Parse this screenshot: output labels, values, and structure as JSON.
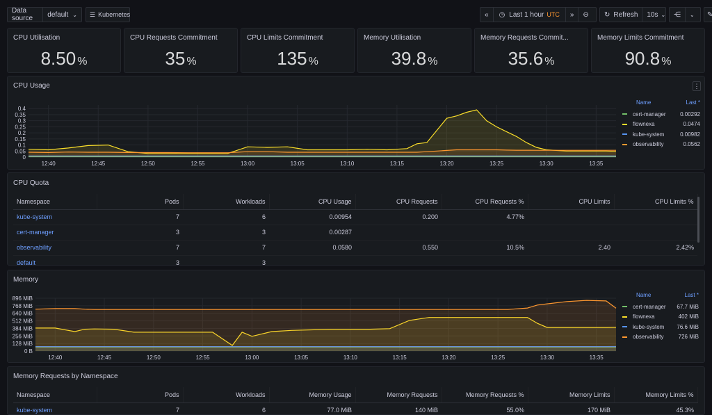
{
  "toolbar": {
    "datasource_label": "Data source",
    "datasource_value": "default",
    "kubernetes_label": "Kubernetes",
    "time_range": "Last 1 hour",
    "timezone": "UTC",
    "refresh_label": "Refresh",
    "refresh_interval": "10s"
  },
  "stats": [
    {
      "title": "CPU Utilisation",
      "value": "8.50",
      "unit": "%"
    },
    {
      "title": "CPU Requests Commitment",
      "value": "35",
      "unit": "%"
    },
    {
      "title": "CPU Limits Commitment",
      "value": "135",
      "unit": "%"
    },
    {
      "title": "Memory Utilisation",
      "value": "39.8",
      "unit": "%"
    },
    {
      "title": "Memory Requests Commit...",
      "value": "35.6",
      "unit": "%"
    },
    {
      "title": "Memory Limits Commitment",
      "value": "90.8",
      "unit": "%"
    }
  ],
  "cpu_usage": {
    "title": "CPU Usage",
    "legend": {
      "name_header": "Name",
      "last_header": "Last *",
      "rows": [
        {
          "name": "cert-manager",
          "value": "0.00292",
          "color": "#73bf69"
        },
        {
          "name": "flownexa",
          "value": "0.0474",
          "color": "#fade2a"
        },
        {
          "name": "kube-system",
          "value": "0.00982",
          "color": "#5794f2"
        },
        {
          "name": "observability",
          "value": "0.0562",
          "color": "#ff9830"
        }
      ]
    }
  },
  "cpu_quota": {
    "title": "CPU Quota",
    "columns": [
      "Namespace",
      "Pods",
      "Workloads",
      "CPU Usage",
      "CPU Requests",
      "CPU Requests %",
      "CPU Limits",
      "CPU Limits %"
    ],
    "rows": [
      [
        "kube-system",
        "7",
        "6",
        "0.00954",
        "0.200",
        "4.77%",
        "",
        ""
      ],
      [
        "cert-manager",
        "3",
        "3",
        "0.00287",
        "",
        "",
        "",
        ""
      ],
      [
        "observability",
        "7",
        "7",
        "0.0580",
        "0.550",
        "10.5%",
        "2.40",
        "2.42%"
      ],
      [
        "default",
        "3",
        "3",
        "",
        "",
        "",
        "",
        ""
      ]
    ]
  },
  "memory": {
    "title": "Memory",
    "legend": {
      "name_header": "Name",
      "last_header": "Last *",
      "rows": [
        {
          "name": "cert-manager",
          "value": "67.7 MiB",
          "color": "#73bf69"
        },
        {
          "name": "flownexa",
          "value": "402 MiB",
          "color": "#fade2a"
        },
        {
          "name": "kube-system",
          "value": "76.6 MiB",
          "color": "#5794f2"
        },
        {
          "name": "observability",
          "value": "726 MiB",
          "color": "#ff9830"
        }
      ]
    }
  },
  "mem_requests": {
    "title": "Memory Requests by Namespace",
    "columns": [
      "Namespace",
      "Pods",
      "Workloads",
      "Memory Usage",
      "Memory Requests",
      "Memory Requests %",
      "Memory Limits",
      "Memory Limits %"
    ],
    "rows": [
      [
        "kube-system",
        "7",
        "6",
        "77.0 MiB",
        "140 MiB",
        "55.0%",
        "170 MiB",
        "45.3%"
      ]
    ]
  },
  "chart_data": [
    {
      "type": "area",
      "title": "CPU Usage",
      "x": [
        "12:38",
        "12:40",
        "12:42",
        "12:44",
        "12:46",
        "12:48",
        "12:50",
        "12:52",
        "12:54",
        "12:56",
        "12:58",
        "13:00",
        "13:02",
        "13:04",
        "13:06",
        "13:08",
        "13:10",
        "13:12",
        "13:14",
        "13:16",
        "13:17",
        "13:18",
        "13:19",
        "13:20",
        "13:21",
        "13:22",
        "13:23",
        "13:24",
        "13:25",
        "13:26",
        "13:27",
        "13:28",
        "13:29",
        "13:30",
        "13:32",
        "13:34",
        "13:36",
        "13:37"
      ],
      "x_ticks": [
        "12:40",
        "12:45",
        "12:50",
        "12:55",
        "13:00",
        "13:05",
        "13:10",
        "13:15",
        "13:20",
        "13:25",
        "13:30",
        "13:35"
      ],
      "y_ticks": [
        "0",
        "0.05",
        "0.1",
        "0.15",
        "0.2",
        "0.25",
        "0.3",
        "0.35",
        "0.4"
      ],
      "ylim": [
        0,
        0.43
      ],
      "series": [
        {
          "name": "cert-manager",
          "color": "#73bf69",
          "values": [
            0.003,
            0.003,
            0.003,
            0.003,
            0.003,
            0.003,
            0.003,
            0.003,
            0.003,
            0.003,
            0.003,
            0.003,
            0.003,
            0.003,
            0.003,
            0.003,
            0.003,
            0.003,
            0.003,
            0.003,
            0.003,
            0.003,
            0.003,
            0.003,
            0.003,
            0.003,
            0.003,
            0.003,
            0.003,
            0.003,
            0.003,
            0.003,
            0.003,
            0.003,
            0.003,
            0.003,
            0.003,
            0.003
          ]
        },
        {
          "name": "flownexa",
          "color": "#fade2a",
          "values": [
            0.065,
            0.06,
            0.075,
            0.095,
            0.1,
            0.045,
            0.03,
            0.03,
            0.03,
            0.03,
            0.03,
            0.085,
            0.08,
            0.085,
            0.06,
            0.06,
            0.06,
            0.065,
            0.06,
            0.07,
            0.11,
            0.12,
            0.22,
            0.32,
            0.34,
            0.37,
            0.39,
            0.3,
            0.25,
            0.21,
            0.17,
            0.12,
            0.08,
            0.06,
            0.05,
            0.05,
            0.05,
            0.047
          ]
        },
        {
          "name": "kube-system",
          "color": "#5794f2",
          "values": [
            0.01,
            0.01,
            0.01,
            0.01,
            0.01,
            0.01,
            0.01,
            0.01,
            0.01,
            0.01,
            0.01,
            0.01,
            0.01,
            0.01,
            0.01,
            0.01,
            0.01,
            0.01,
            0.01,
            0.01,
            0.01,
            0.01,
            0.01,
            0.01,
            0.01,
            0.01,
            0.01,
            0.01,
            0.01,
            0.01,
            0.01,
            0.01,
            0.01,
            0.01,
            0.01,
            0.01,
            0.01,
            0.01
          ]
        },
        {
          "name": "observability",
          "color": "#ff9830",
          "values": [
            0.04,
            0.038,
            0.042,
            0.04,
            0.04,
            0.038,
            0.037,
            0.037,
            0.036,
            0.036,
            0.036,
            0.045,
            0.045,
            0.04,
            0.04,
            0.04,
            0.04,
            0.04,
            0.04,
            0.04,
            0.04,
            0.045,
            0.05,
            0.055,
            0.06,
            0.06,
            0.06,
            0.06,
            0.06,
            0.058,
            0.057,
            0.057,
            0.056,
            0.056,
            0.056,
            0.056,
            0.056,
            0.056
          ]
        }
      ]
    },
    {
      "type": "area",
      "title": "Memory",
      "x": [
        "12:38",
        "12:40",
        "12:42",
        "12:43",
        "12:44",
        "12:46",
        "12:48",
        "12:50",
        "12:52",
        "12:54",
        "12:56",
        "12:58",
        "12:59",
        "13:00",
        "13:02",
        "13:04",
        "13:06",
        "13:08",
        "13:10",
        "13:12",
        "13:14",
        "13:16",
        "13:18",
        "13:20",
        "13:22",
        "13:24",
        "13:26",
        "13:28",
        "13:29",
        "13:30",
        "13:32",
        "13:34",
        "13:36",
        "13:37"
      ],
      "x_ticks": [
        "12:40",
        "12:45",
        "12:50",
        "12:55",
        "13:00",
        "13:05",
        "13:10",
        "13:15",
        "13:20",
        "13:25",
        "13:30",
        "13:35"
      ],
      "y_ticks": [
        "0 B",
        "128 MiB",
        "256 MiB",
        "384 MiB",
        "512 MiB",
        "640 MiB",
        "768 MiB",
        "896 MiB"
      ],
      "ylim": [
        0,
        896
      ],
      "series": [
        {
          "name": "cert-manager",
          "color": "#73bf69",
          "values": [
            67,
            67,
            67,
            67,
            67,
            67,
            67,
            67,
            67,
            67,
            67,
            67,
            67,
            67,
            67,
            67,
            67,
            67,
            67,
            67,
            67,
            67,
            67,
            67,
            67,
            67,
            67,
            67,
            67,
            67,
            67,
            67,
            67,
            67.7
          ]
        },
        {
          "name": "flownexa",
          "color": "#fade2a",
          "values": [
            390,
            390,
            330,
            370,
            375,
            370,
            320,
            320,
            320,
            320,
            320,
            95,
            320,
            250,
            330,
            350,
            360,
            370,
            370,
            370,
            380,
            520,
            570,
            570,
            570,
            570,
            570,
            570,
            470,
            400,
            400,
            400,
            400,
            402
          ]
        },
        {
          "name": "kube-system",
          "color": "#5794f2",
          "values": [
            76,
            76,
            76,
            76,
            76,
            76,
            76,
            76,
            76,
            76,
            76,
            76,
            76,
            76,
            76,
            76,
            76,
            76,
            76,
            76,
            76,
            76,
            76,
            76,
            76,
            76,
            76,
            76,
            76,
            76,
            76,
            76,
            76,
            76.6
          ]
        },
        {
          "name": "observability",
          "color": "#ff9830",
          "values": [
            710,
            720,
            720,
            710,
            705,
            705,
            705,
            705,
            705,
            705,
            705,
            705,
            705,
            705,
            705,
            705,
            705,
            705,
            705,
            705,
            705,
            705,
            705,
            705,
            705,
            705,
            705,
            730,
            780,
            800,
            840,
            860,
            850,
            726
          ]
        }
      ]
    }
  ]
}
